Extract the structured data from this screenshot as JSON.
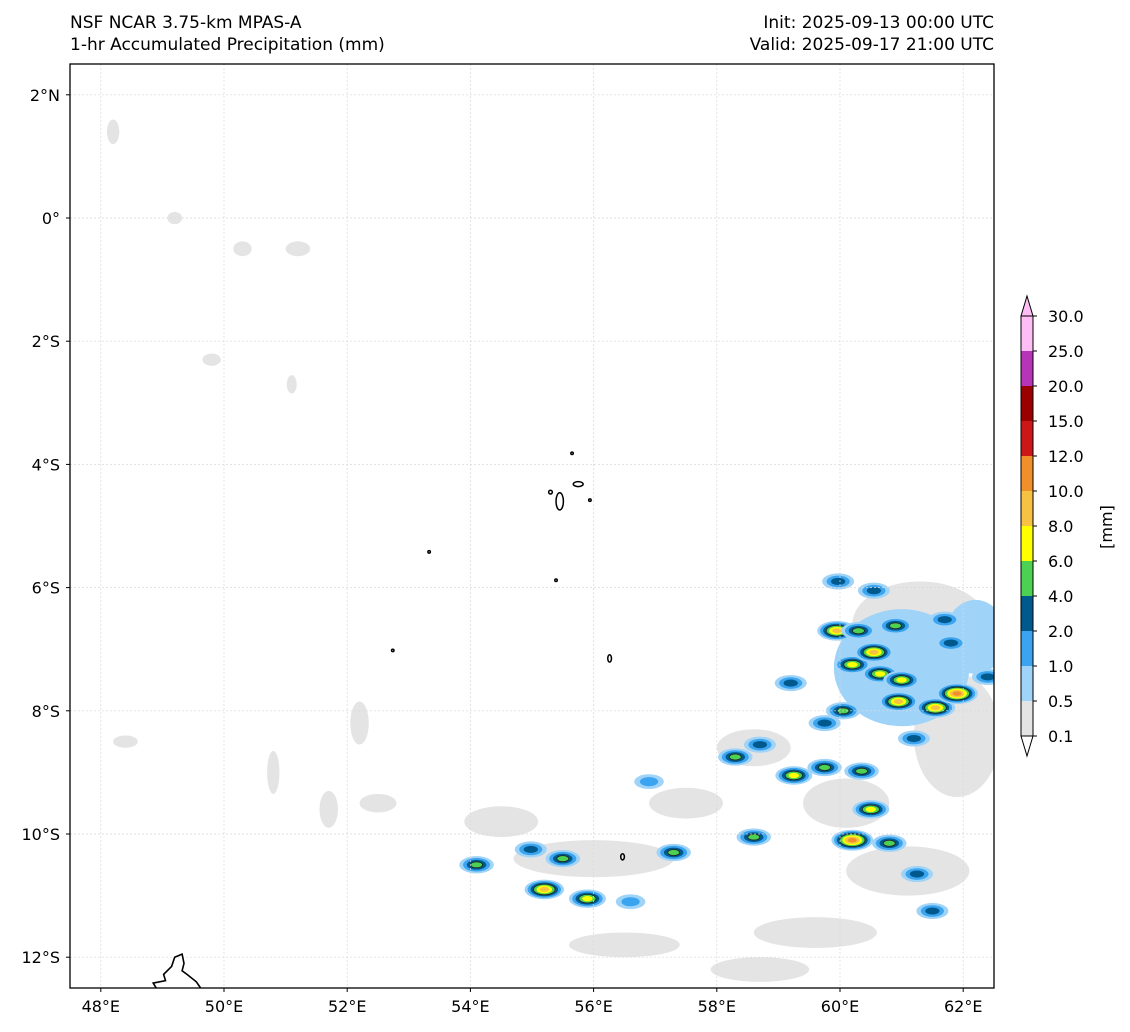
{
  "header": {
    "model": "NSF NCAR 3.75-km MPAS-A",
    "field": "1-hr Accumulated Precipitation (mm)",
    "init": "Init: 2025-09-13 00:00 UTC",
    "valid": "Valid: 2025-09-17 21:00 UTC"
  },
  "map": {
    "extent": {
      "lon_min": 47.5,
      "lon_max": 62.5,
      "lat_min": -12.5,
      "lat_max": 2.5
    },
    "lon_ticks": [
      {
        "value": 48,
        "label": "48°E"
      },
      {
        "value": 50,
        "label": "50°E"
      },
      {
        "value": 52,
        "label": "52°E"
      },
      {
        "value": 54,
        "label": "54°E"
      },
      {
        "value": 56,
        "label": "56°E"
      },
      {
        "value": 58,
        "label": "58°E"
      },
      {
        "value": 60,
        "label": "60°E"
      },
      {
        "value": 62,
        "label": "62°E"
      }
    ],
    "lat_ticks": [
      {
        "value": 2,
        "label": "2°N"
      },
      {
        "value": 0,
        "label": "0°"
      },
      {
        "value": -2,
        "label": "2°S"
      },
      {
        "value": -4,
        "label": "4°S"
      },
      {
        "value": -6,
        "label": "6°S"
      },
      {
        "value": -8,
        "label": "8°S"
      },
      {
        "value": -10,
        "label": "10°S"
      },
      {
        "value": -12,
        "label": "12°S"
      }
    ],
    "gridlines": true,
    "coastline_color": "#000000",
    "light_precip_patches": [
      {
        "lon": 48.2,
        "lat": 1.4,
        "rlon": 0.1,
        "rlat": 0.2
      },
      {
        "lon": 49.2,
        "lat": 0.0,
        "rlon": 0.12,
        "rlat": 0.1
      },
      {
        "lon": 50.3,
        "lat": -0.5,
        "rlon": 0.15,
        "rlat": 0.12
      },
      {
        "lon": 51.2,
        "lat": -0.5,
        "rlon": 0.2,
        "rlat": 0.12
      },
      {
        "lon": 49.8,
        "lat": -2.3,
        "rlon": 0.15,
        "rlat": 0.1
      },
      {
        "lon": 51.1,
        "lat": -2.7,
        "rlon": 0.08,
        "rlat": 0.15
      },
      {
        "lon": 48.4,
        "lat": -8.5,
        "rlon": 0.2,
        "rlat": 0.1
      },
      {
        "lon": 50.8,
        "lat": -9.0,
        "rlon": 0.1,
        "rlat": 0.35
      },
      {
        "lon": 51.7,
        "lat": -9.6,
        "rlon": 0.15,
        "rlat": 0.3
      },
      {
        "lon": 52.2,
        "lat": -8.2,
        "rlon": 0.15,
        "rlat": 0.35
      },
      {
        "lon": 52.5,
        "lat": -9.5,
        "rlon": 0.3,
        "rlat": 0.15
      },
      {
        "lon": 54.5,
        "lat": -9.8,
        "rlon": 0.6,
        "rlat": 0.25
      },
      {
        "lon": 56.0,
        "lat": -10.4,
        "rlon": 1.3,
        "rlat": 0.3
      },
      {
        "lon": 57.5,
        "lat": -9.5,
        "rlon": 0.6,
        "rlat": 0.25
      },
      {
        "lon": 58.6,
        "lat": -8.6,
        "rlon": 0.6,
        "rlat": 0.3
      },
      {
        "lon": 60.1,
        "lat": -9.5,
        "rlon": 0.7,
        "rlat": 0.4
      },
      {
        "lon": 61.1,
        "lat": -10.6,
        "rlon": 1.0,
        "rlat": 0.4
      },
      {
        "lon": 61.9,
        "lat": -8.4,
        "rlon": 0.7,
        "rlat": 1.0
      },
      {
        "lon": 61.3,
        "lat": -6.6,
        "rlon": 1.1,
        "rlat": 0.7
      },
      {
        "lon": 59.6,
        "lat": -11.6,
        "rlon": 1.0,
        "rlat": 0.25
      },
      {
        "lon": 56.5,
        "lat": -11.8,
        "rlon": 0.9,
        "rlat": 0.2
      },
      {
        "lon": 58.7,
        "lat": -12.2,
        "rlon": 0.8,
        "rlat": 0.2
      }
    ],
    "islands": [
      {
        "lon": 55.45,
        "lat": -4.6,
        "rlon": 0.06,
        "rlat": 0.14
      },
      {
        "lon": 55.75,
        "lat": -4.32,
        "rlon": 0.08,
        "rlat": 0.04
      },
      {
        "lon": 55.3,
        "lat": -4.45,
        "rlon": 0.03,
        "rlat": 0.03
      },
      {
        "lon": 55.65,
        "lat": -3.82,
        "rlon": 0.02,
        "rlat": 0.02
      },
      {
        "lon": 55.94,
        "lat": -4.58,
        "rlon": 0.02,
        "rlat": 0.02
      },
      {
        "lon": 53.33,
        "lat": -5.42,
        "rlon": 0.02,
        "rlat": 0.02
      },
      {
        "lon": 55.39,
        "lat": -5.88,
        "rlon": 0.02,
        "rlat": 0.02
      },
      {
        "lon": 52.74,
        "lat": -7.02,
        "rlon": 0.02,
        "rlat": 0.02
      },
      {
        "lon": 56.26,
        "lat": -7.15,
        "rlon": 0.03,
        "rlat": 0.06
      },
      {
        "lon": 56.47,
        "lat": -10.37,
        "rlon": 0.03,
        "rlat": 0.05
      }
    ],
    "madagascar_tip": [
      {
        "lon": 48.9,
        "lat": -12.5
      },
      {
        "lon": 48.85,
        "lat": -12.42
      },
      {
        "lon": 49.05,
        "lat": -12.38
      },
      {
        "lon": 49.02,
        "lat": -12.28
      },
      {
        "lon": 49.15,
        "lat": -12.15
      },
      {
        "lon": 49.2,
        "lat": -12.0
      },
      {
        "lon": 49.32,
        "lat": -11.95
      },
      {
        "lon": 49.35,
        "lat": -12.1
      },
      {
        "lon": 49.32,
        "lat": -12.22
      },
      {
        "lon": 49.4,
        "lat": -12.28
      },
      {
        "lon": 49.55,
        "lat": -12.4
      },
      {
        "lon": 49.62,
        "lat": -12.5
      }
    ],
    "precip_cells": [
      {
        "lon": 54.1,
        "lat": -10.5,
        "peak": 4
      },
      {
        "lon": 54.98,
        "lat": -10.25,
        "peak": 3
      },
      {
        "lon": 55.2,
        "lat": -10.9,
        "peak": 6
      },
      {
        "lon": 55.5,
        "lat": -10.4,
        "peak": 4
      },
      {
        "lon": 55.9,
        "lat": -11.05,
        "peak": 5
      },
      {
        "lon": 56.6,
        "lat": -11.1,
        "peak": 2
      },
      {
        "lon": 57.3,
        "lat": -10.3,
        "peak": 4
      },
      {
        "lon": 56.9,
        "lat": -9.15,
        "peak": 2
      },
      {
        "lon": 58.3,
        "lat": -8.75,
        "peak": 4
      },
      {
        "lon": 58.7,
        "lat": -8.55,
        "peak": 3
      },
      {
        "lon": 58.6,
        "lat": -10.05,
        "peak": 4
      },
      {
        "lon": 59.25,
        "lat": -9.05,
        "peak": 5
      },
      {
        "lon": 59.75,
        "lat": -8.92,
        "peak": 4
      },
      {
        "lon": 60.35,
        "lat": -8.98,
        "peak": 4
      },
      {
        "lon": 59.2,
        "lat": -7.55,
        "peak": 3
      },
      {
        "lon": 59.75,
        "lat": -8.2,
        "peak": 3
      },
      {
        "lon": 60.05,
        "lat": -8.0,
        "peak": 4
      },
      {
        "lon": 59.95,
        "lat": -6.7,
        "peak": 6
      },
      {
        "lon": 60.3,
        "lat": -6.7,
        "peak": 4
      },
      {
        "lon": 60.2,
        "lat": -7.25,
        "peak": 5
      },
      {
        "lon": 60.55,
        "lat": -7.05,
        "peak": 6
      },
      {
        "lon": 60.65,
        "lat": -7.4,
        "peak": 5
      },
      {
        "lon": 60.9,
        "lat": -6.62,
        "peak": 4
      },
      {
        "lon": 61.0,
        "lat": -7.5,
        "peak": 5
      },
      {
        "lon": 60.95,
        "lat": -7.85,
        "peak": 6
      },
      {
        "lon": 61.55,
        "lat": -7.95,
        "peak": 6
      },
      {
        "lon": 61.9,
        "lat": -7.72,
        "peak": 7
      },
      {
        "lon": 61.8,
        "lat": -6.9,
        "peak": 3
      },
      {
        "lon": 61.7,
        "lat": -6.52,
        "peak": 3
      },
      {
        "lon": 60.5,
        "lat": -9.6,
        "peak": 5
      },
      {
        "lon": 60.2,
        "lat": -10.1,
        "peak": 7
      },
      {
        "lon": 60.8,
        "lat": -10.15,
        "peak": 4
      },
      {
        "lon": 61.25,
        "lat": -10.65,
        "peak": 3
      },
      {
        "lon": 61.5,
        "lat": -11.25,
        "peak": 3
      },
      {
        "lon": 61.2,
        "lat": -8.45,
        "peak": 3
      },
      {
        "lon": 59.97,
        "lat": -5.9,
        "peak": 3
      },
      {
        "lon": 60.55,
        "lat": -6.05,
        "peak": 3
      },
      {
        "lon": 62.4,
        "lat": -7.45,
        "peak": 3
      }
    ]
  },
  "colorbar": {
    "label": "[mm]",
    "levels": [
      "0.1",
      "0.5",
      "1.0",
      "2.0",
      "4.0",
      "6.0",
      "8.0",
      "10.0",
      "12.0",
      "15.0",
      "20.0",
      "25.0",
      "30.0"
    ],
    "colors": [
      "#e4e4e4",
      "#9fd3f8",
      "#3aa4f0",
      "#00598c",
      "#4dd152",
      "#ffff00",
      "#f7c243",
      "#f18f2a",
      "#cc1719",
      "#9a0000",
      "#b534b8",
      "#ffbdf5"
    ],
    "extend": "both"
  }
}
